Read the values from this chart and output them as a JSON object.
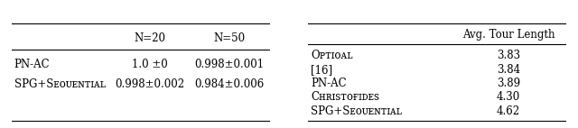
{
  "left_table": {
    "col_headers": [
      "",
      "N=20",
      "N=50"
    ],
    "rows": [
      [
        "PN-AC",
        "1.0 ±0",
        "0.998±0.001"
      ],
      [
        "SPG+Sᴇᴏᴜᴇɴᴛɪᴀʟ",
        "0.998±0.002",
        "0.984±0.006"
      ]
    ]
  },
  "right_table": {
    "col_headers": [
      "",
      "Avg. Tour Length"
    ],
    "rows": [
      [
        "Oᴘᴛɪᴏᴀʟ",
        "3.83"
      ],
      [
        "[16]",
        "3.84"
      ],
      [
        "PN-AC",
        "3.89"
      ],
      [
        "Cʜʀɪѕᴛᴏғɪᴅᴇѕ",
        "4.30"
      ],
      [
        "SPG+Sᴇᴏᴜᴇɴᴛɪᴀʟ",
        "4.62"
      ]
    ]
  },
  "bg_color": "#ffffff",
  "text_color": "#000000",
  "font_size": 8.5,
  "header_font_size": 8.5
}
